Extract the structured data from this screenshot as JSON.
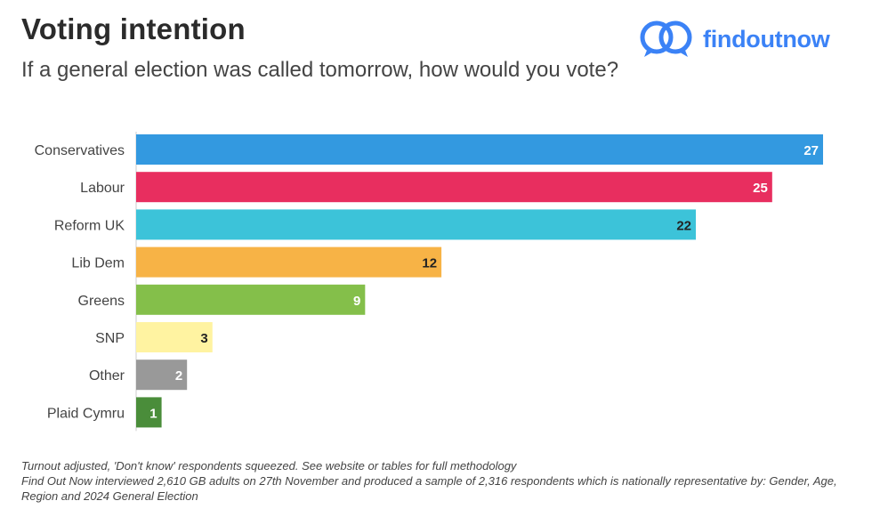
{
  "header": {
    "title": "Voting intention",
    "subtitle": "If a general election was called tomorrow, how would you vote?"
  },
  "brand": {
    "name": "findoutnow",
    "color": "#3b82f6",
    "icon": "double-speech-bubble-icon"
  },
  "chart_data": {
    "type": "bar",
    "orientation": "horizontal",
    "title": "Voting intention",
    "subtitle": "If a general election was called tomorrow, how would you vote?",
    "categories": [
      "Conservatives",
      "Labour",
      "Reform UK",
      "Lib Dem",
      "Greens",
      "SNP",
      "Other",
      "Plaid Cymru"
    ],
    "values": [
      27,
      25,
      22,
      12,
      9,
      3,
      2,
      1
    ],
    "colors": [
      "#3399e0",
      "#e82e5f",
      "#3cc3d9",
      "#f7b346",
      "#84bf4a",
      "#fff3a1",
      "#999999",
      "#4a8d3a"
    ],
    "label_colors": [
      "#ffffff",
      "#ffffff",
      "#222222",
      "#222222",
      "#ffffff",
      "#222222",
      "#ffffff",
      "#ffffff"
    ],
    "xlim": [
      0,
      27
    ],
    "grid": false,
    "legend": "none",
    "data_labels": true
  },
  "footnotes": [
    "Turnout adjusted, 'Don't know' respondents squeezed. See website or tables for full methodology",
    "Find Out Now interviewed 2,610 GB adults on 27th November and produced a sample of 2,316 respondents which is nationally representative by: Gender, Age, Region and 2024 General Election"
  ]
}
